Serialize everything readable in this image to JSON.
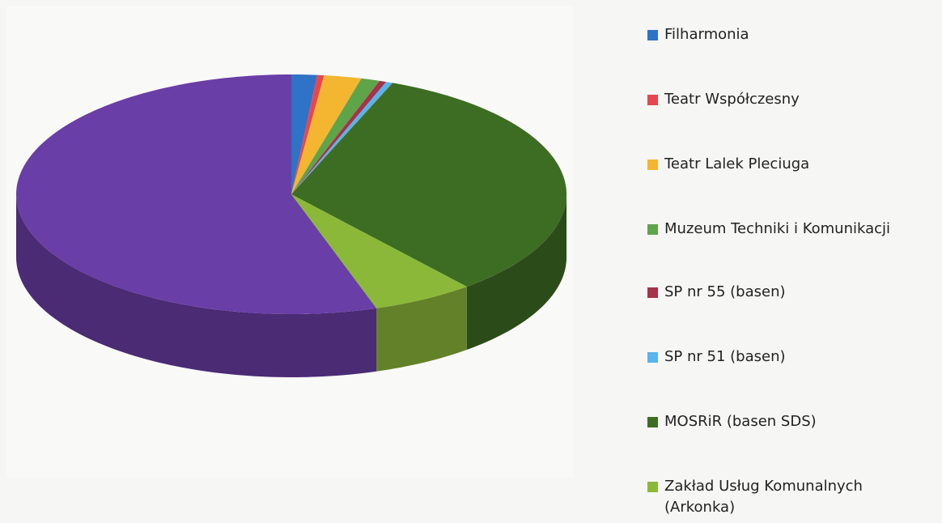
{
  "chart_data": {
    "type": "pie3d",
    "categories": [
      "Filharmonia",
      "Teatr Współczesny",
      "Teatr Lalek Pleciuga",
      "Muzeum Techniki i Komunikacji",
      "SP nr 55 (basen)",
      "SP nr 51 (basen)",
      "MOSRiR (basen SDS)",
      "Zakład Usług Komunalnych (Arkonka)",
      null
    ],
    "values": [
      1.5,
      0.4,
      2.2,
      1.1,
      0.4,
      0.4,
      33,
      6,
      55
    ],
    "colors": [
      "#2e73c6",
      "#e6474f",
      "#f4b530",
      "#5ea449",
      "#a53349",
      "#5ab3ea",
      "#3d6d22",
      "#8cb83a",
      "#693ea6"
    ]
  }
}
